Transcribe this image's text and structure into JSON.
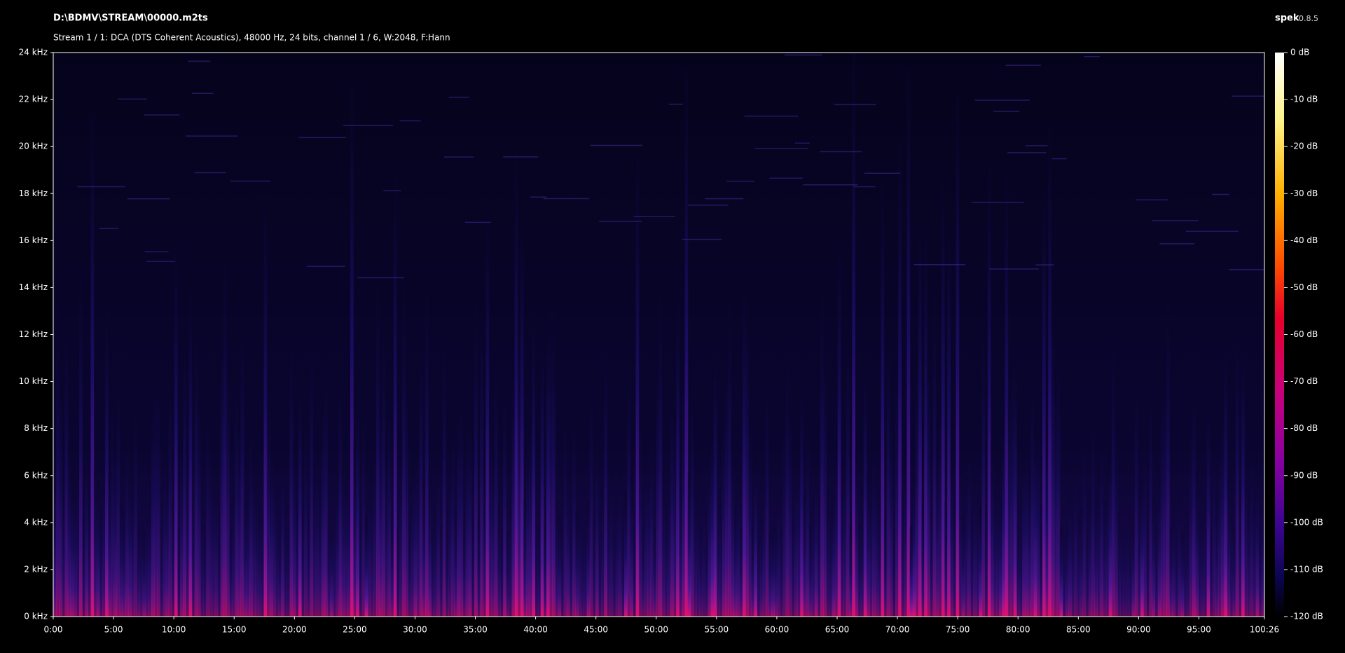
{
  "chart_data": {
    "type": "spectrogram",
    "title": "D:\\BDMV\\STREAM\\00000.m2ts",
    "subtitle": "Stream 1 / 1: DCA (DTS Coherent Acoustics), 48000 Hz, 24 bits, channel 1 / 6, W:2048, F:Hann",
    "app_name": "spek",
    "app_version": "0.8.5",
    "xlim": [
      0,
      6026
    ],
    "xticks": [
      {
        "value": 0,
        "label": "0:00"
      },
      {
        "value": 300,
        "label": "5:00"
      },
      {
        "value": 600,
        "label": "10:00"
      },
      {
        "value": 900,
        "label": "15:00"
      },
      {
        "value": 1200,
        "label": "20:00"
      },
      {
        "value": 1500,
        "label": "25:00"
      },
      {
        "value": 1800,
        "label": "30:00"
      },
      {
        "value": 2100,
        "label": "35:00"
      },
      {
        "value": 2400,
        "label": "40:00"
      },
      {
        "value": 2700,
        "label": "45:00"
      },
      {
        "value": 3000,
        "label": "50:00"
      },
      {
        "value": 3300,
        "label": "55:00"
      },
      {
        "value": 3600,
        "label": "60:00"
      },
      {
        "value": 3900,
        "label": "65:00"
      },
      {
        "value": 4200,
        "label": "70:00"
      },
      {
        "value": 4500,
        "label": "75:00"
      },
      {
        "value": 4800,
        "label": "80:00"
      },
      {
        "value": 5100,
        "label": "85:00"
      },
      {
        "value": 5400,
        "label": "90:00"
      },
      {
        "value": 5700,
        "label": "95:00"
      },
      {
        "value": 6026,
        "label": "100:26"
      }
    ],
    "ylim": [
      0,
      24
    ],
    "yticks": [
      {
        "value": 0,
        "label": "0 kHz"
      },
      {
        "value": 2,
        "label": "2 kHz"
      },
      {
        "value": 4,
        "label": "4 kHz"
      },
      {
        "value": 6,
        "label": "6 kHz"
      },
      {
        "value": 8,
        "label": "8 kHz"
      },
      {
        "value": 10,
        "label": "10 kHz"
      },
      {
        "value": 12,
        "label": "12 kHz"
      },
      {
        "value": 14,
        "label": "14 kHz"
      },
      {
        "value": 16,
        "label": "16 kHz"
      },
      {
        "value": 18,
        "label": "18 kHz"
      },
      {
        "value": 20,
        "label": "20 kHz"
      },
      {
        "value": 22,
        "label": "22 kHz"
      },
      {
        "value": 24,
        "label": "24 kHz"
      }
    ],
    "zlim": [
      -120,
      0
    ],
    "zticks": [
      {
        "value": 0,
        "label": "0 dB"
      },
      {
        "value": -10,
        "label": "-10 dB"
      },
      {
        "value": -20,
        "label": "-20 dB"
      },
      {
        "value": -30,
        "label": "-30 dB"
      },
      {
        "value": -40,
        "label": "-40 dB"
      },
      {
        "value": -50,
        "label": "-50 dB"
      },
      {
        "value": -60,
        "label": "-60 dB"
      },
      {
        "value": -70,
        "label": "-70 dB"
      },
      {
        "value": -80,
        "label": "-80 dB"
      },
      {
        "value": -90,
        "label": "-90 dB"
      },
      {
        "value": -100,
        "label": "-100 dB"
      },
      {
        "value": -110,
        "label": "-110 dB"
      },
      {
        "value": -120,
        "label": "-120 dB"
      }
    ]
  }
}
